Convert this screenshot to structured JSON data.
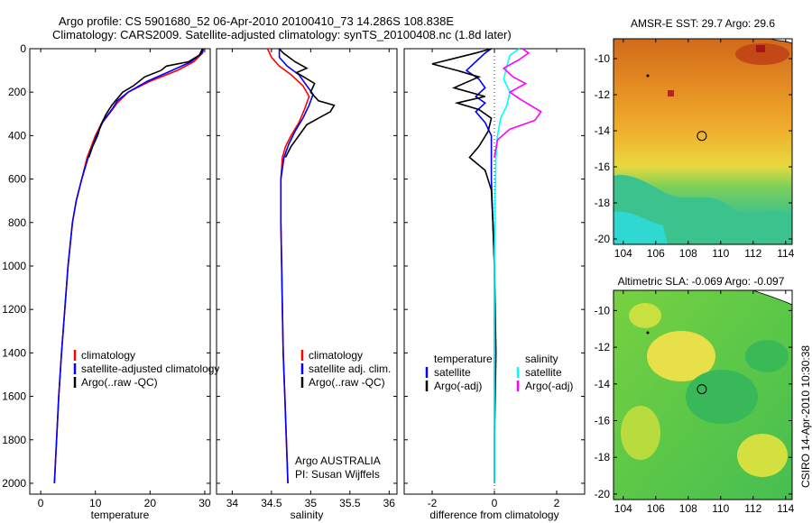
{
  "header": {
    "line1": "Argo profile: CS 5901680_52 06-Apr-2010 20100410_73 14.286S 108.838E",
    "line2": "Climatology: CARS2009. Satellite-adjusted climatology: synTS_20100408.nc (1.8d later)"
  },
  "side_label": "CSIRO 14-Apr-2010 10:30:38",
  "colors": {
    "climatology": "#ff0000",
    "satellite": "#0000ff",
    "argo": "#000000",
    "satellite_salinity": "#00ffff",
    "argo_adj_salinity": "#ff00ff"
  },
  "chart_data": [
    {
      "type": "line",
      "panel": "temperature",
      "xlabel": "temperature",
      "xlim": [
        -2,
        31
      ],
      "xticks": [
        0,
        10,
        20,
        30
      ],
      "ylim": [
        0,
        2050
      ],
      "yreversed": true,
      "yticks": [
        0,
        200,
        400,
        600,
        800,
        1000,
        1200,
        1400,
        1600,
        1800,
        2000
      ],
      "legend": [
        "climatology",
        "satellite-adjusted climatology",
        "Argo(..raw -QC)"
      ],
      "series": [
        {
          "name": "climatology",
          "color": "#ff0000",
          "points": [
            [
              29.8,
              0
            ],
            [
              29.6,
              20
            ],
            [
              28,
              60
            ],
            [
              25,
              100
            ],
            [
              20,
              150
            ],
            [
              16,
              200
            ],
            [
              14,
              250
            ],
            [
              12.5,
              300
            ],
            [
              11,
              350
            ],
            [
              10,
              400
            ],
            [
              8.5,
              500
            ],
            [
              7.5,
              600
            ],
            [
              6.5,
              700
            ],
            [
              5.8,
              800
            ],
            [
              5,
              1000
            ],
            [
              4.4,
              1200
            ],
            [
              3.8,
              1400
            ],
            [
              3.3,
              1600
            ],
            [
              2.9,
              1800
            ],
            [
              2.5,
              2000
            ]
          ]
        },
        {
          "name": "satellite-adjusted climatology",
          "color": "#0000ff",
          "points": [
            [
              29.7,
              0
            ],
            [
              29.5,
              20
            ],
            [
              27.5,
              60
            ],
            [
              24,
              100
            ],
            [
              19.5,
              150
            ],
            [
              16,
              200
            ],
            [
              14,
              240
            ],
            [
              13,
              280
            ],
            [
              11.5,
              330
            ],
            [
              10.2,
              400
            ],
            [
              8.7,
              500
            ],
            [
              7.5,
              600
            ],
            [
              6.5,
              700
            ],
            [
              5.8,
              800
            ],
            [
              5,
              1000
            ],
            [
              4.4,
              1200
            ],
            [
              3.8,
              1400
            ],
            [
              3.3,
              1600
            ],
            [
              2.9,
              1800
            ],
            [
              2.5,
              2000
            ]
          ]
        },
        {
          "name": "Argo(..raw -QC)",
          "color": "#000000",
          "points": [
            [
              29.6,
              0
            ],
            [
              29.4,
              10
            ],
            [
              29,
              30
            ],
            [
              27,
              60
            ],
            [
              23,
              80
            ],
            [
              22,
              100
            ],
            [
              19,
              130
            ],
            [
              17,
              170
            ],
            [
              15,
              200
            ],
            [
              14,
              230
            ],
            [
              13,
              260
            ],
            [
              12,
              300
            ],
            [
              11,
              350
            ],
            [
              10.4,
              400
            ],
            [
              9.5,
              450
            ],
            [
              8.8,
              500
            ]
          ]
        }
      ]
    },
    {
      "type": "line",
      "panel": "salinity",
      "xlabel": "salinity",
      "xlim": [
        33.8,
        36.1
      ],
      "xticks": [
        34,
        34.5,
        35,
        35.5,
        36
      ],
      "ylim": [
        0,
        2050
      ],
      "yreversed": true,
      "legend": [
        "climatology",
        "satellite adj. clim.",
        "Argo(..raw -QC)"
      ],
      "notes": [
        "Argo AUSTRALIA",
        "PI: Susan Wijffels"
      ],
      "series": [
        {
          "name": "climatology",
          "color": "#ff0000",
          "points": [
            [
              34.45,
              0
            ],
            [
              34.5,
              40
            ],
            [
              34.6,
              80
            ],
            [
              34.75,
              120
            ],
            [
              34.9,
              170
            ],
            [
              34.98,
              220
            ],
            [
              34.92,
              280
            ],
            [
              34.85,
              340
            ],
            [
              34.75,
              400
            ],
            [
              34.68,
              450
            ],
            [
              34.64,
              500
            ],
            [
              34.62,
              600
            ],
            [
              34.62,
              800
            ],
            [
              34.63,
              1000
            ],
            [
              34.64,
              1200
            ],
            [
              34.65,
              1400
            ],
            [
              34.67,
              1600
            ],
            [
              34.69,
              1800
            ],
            [
              34.71,
              2000
            ]
          ]
        },
        {
          "name": "satellite adj. clim.",
          "color": "#0000ff",
          "points": [
            [
              34.6,
              0
            ],
            [
              34.6,
              40
            ],
            [
              34.7,
              80
            ],
            [
              34.85,
              120
            ],
            [
              34.95,
              170
            ],
            [
              35.03,
              210
            ],
            [
              34.98,
              260
            ],
            [
              34.9,
              320
            ],
            [
              34.8,
              380
            ],
            [
              34.72,
              440
            ],
            [
              34.66,
              500
            ],
            [
              34.62,
              600
            ],
            [
              34.62,
              800
            ],
            [
              34.63,
              1000
            ],
            [
              34.64,
              1200
            ],
            [
              34.65,
              1400
            ],
            [
              34.67,
              1600
            ],
            [
              34.69,
              1800
            ],
            [
              34.71,
              2000
            ]
          ]
        },
        {
          "name": "Argo(..raw -QC)",
          "color": "#000000",
          "points": [
            [
              34.6,
              0
            ],
            [
              34.65,
              20
            ],
            [
              34.8,
              60
            ],
            [
              34.95,
              90
            ],
            [
              34.82,
              110
            ],
            [
              35.05,
              160
            ],
            [
              35,
              200
            ],
            [
              35.1,
              240
            ],
            [
              35.3,
              260
            ],
            [
              35.25,
              290
            ],
            [
              35.1,
              320
            ],
            [
              34.95,
              350
            ],
            [
              34.85,
              400
            ],
            [
              34.75,
              450
            ],
            [
              34.68,
              500
            ]
          ]
        }
      ]
    },
    {
      "type": "line",
      "panel": "difference",
      "xlabel": "difference from climatology",
      "xlim": [
        -2.9,
        2.9
      ],
      "xticks": [
        -2,
        0,
        2
      ],
      "ylim": [
        0,
        2050
      ],
      "yreversed": true,
      "legend": [
        {
          "group": "temperature",
          "items": [
            "satellite",
            "Argo(-adj)"
          ]
        },
        {
          "group": "salinity",
          "items": [
            "satellite",
            "Argo(-adj)"
          ]
        }
      ],
      "series": [
        {
          "name": "temperature satellite",
          "color": "#0000ff",
          "points": [
            [
              -0.1,
              0
            ],
            [
              -0.3,
              20
            ],
            [
              -0.6,
              60
            ],
            [
              -0.9,
              100
            ],
            [
              -0.5,
              140
            ],
            [
              -0.3,
              180
            ],
            [
              -0.6,
              220
            ],
            [
              -0.3,
              250
            ],
            [
              -0.6,
              290
            ],
            [
              -0.3,
              340
            ],
            [
              -0.1,
              400
            ],
            [
              -0.1,
              600
            ],
            [
              -0.05,
              800
            ],
            [
              0,
              1000
            ],
            [
              0,
              1500
            ],
            [
              0,
              2000
            ]
          ]
        },
        {
          "name": "temperature Argo(-adj)",
          "color": "#000000",
          "points": [
            [
              -0.1,
              0
            ],
            [
              -0.6,
              20
            ],
            [
              -2,
              70
            ],
            [
              -1.2,
              100
            ],
            [
              -0.5,
              130
            ],
            [
              -1.3,
              180
            ],
            [
              -0.3,
              220
            ],
            [
              -1.2,
              250
            ],
            [
              -0.5,
              280
            ],
            [
              -0.1,
              320
            ],
            [
              -0.2,
              380
            ],
            [
              -0.5,
              450
            ],
            [
              -0.8,
              500
            ],
            [
              -0.3,
              560
            ],
            [
              -0.1,
              650
            ],
            [
              -0.05,
              800
            ],
            [
              0,
              1000
            ],
            [
              0.05,
              1400
            ],
            [
              0,
              1800
            ],
            [
              0,
              2000
            ]
          ]
        },
        {
          "name": "salinity satellite",
          "color": "#00ffff",
          "points": [
            [
              0.8,
              0
            ],
            [
              0.5,
              30
            ],
            [
              0.4,
              80
            ],
            [
              0.3,
              140
            ],
            [
              0.5,
              200
            ],
            [
              0.4,
              260
            ],
            [
              0.2,
              320
            ],
            [
              0.1,
              400
            ],
            [
              0.05,
              500
            ],
            [
              0.02,
              700
            ],
            [
              0,
              1000
            ],
            [
              0,
              1500
            ],
            [
              0,
              2000
            ]
          ]
        },
        {
          "name": "salinity Argo(-adj)",
          "color": "#ff00ff",
          "points": [
            [
              0.9,
              0
            ],
            [
              1.1,
              20
            ],
            [
              0.8,
              50
            ],
            [
              0.3,
              90
            ],
            [
              0.6,
              130
            ],
            [
              1.0,
              160
            ],
            [
              0.5,
              200
            ],
            [
              0.8,
              230
            ],
            [
              1.5,
              290
            ],
            [
              1.3,
              330
            ],
            [
              0.5,
              370
            ],
            [
              0.1,
              420
            ],
            [
              0,
              500
            ]
          ]
        }
      ]
    },
    {
      "type": "heatmap",
      "panel": "sst_map",
      "title": "AMSR-E SST: 29.7 Argo: 29.6",
      "xlim": [
        103.4,
        114.4
      ],
      "ylim": [
        -20.3,
        -8.9
      ],
      "xticks": [
        104,
        106,
        108,
        110,
        112,
        114
      ],
      "yticks": [
        -10,
        -12,
        -14,
        -16,
        -18,
        -20
      ],
      "marker": {
        "lon": 108.838,
        "lat": -14.286
      }
    },
    {
      "type": "heatmap",
      "panel": "sla_map",
      "title": "Altimetric SLA: -0.069 Argo: -0.097",
      "xlim": [
        103.4,
        114.4
      ],
      "ylim": [
        -20.3,
        -8.9
      ],
      "xticks": [
        104,
        106,
        108,
        110,
        112,
        114
      ],
      "yticks": [
        -10,
        -12,
        -14,
        -16,
        -18,
        -20
      ],
      "marker": {
        "lon": 108.838,
        "lat": -14.286
      }
    }
  ]
}
